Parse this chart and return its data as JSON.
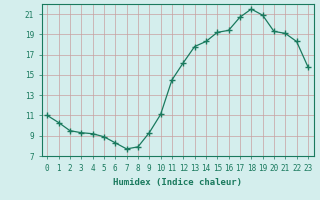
{
  "x": [
    0,
    1,
    2,
    3,
    4,
    5,
    6,
    7,
    8,
    9,
    10,
    11,
    12,
    13,
    14,
    15,
    16,
    17,
    18,
    19,
    20,
    21,
    22,
    23
  ],
  "y": [
    11.0,
    10.3,
    9.5,
    9.3,
    9.2,
    8.9,
    8.3,
    7.7,
    7.9,
    9.3,
    11.1,
    14.5,
    16.2,
    17.8,
    18.3,
    19.2,
    19.4,
    20.7,
    21.5,
    20.9,
    19.3,
    19.1,
    18.3,
    15.8
  ],
  "line_color": "#1a7a5e",
  "marker": "+",
  "marker_size": 4,
  "marker_lw": 1.0,
  "bg_color": "#d4eeed",
  "grid_color": "#c8a0a0",
  "xlabel": "Humidex (Indice chaleur)",
  "ylim": [
    7,
    22
  ],
  "xlim": [
    -0.5,
    23.5
  ],
  "yticks": [
    7,
    9,
    11,
    13,
    15,
    17,
    19,
    21
  ],
  "xtick_labels": [
    "0",
    "1",
    "2",
    "3",
    "4",
    "5",
    "6",
    "7",
    "8",
    "9",
    "10",
    "11",
    "12",
    "13",
    "14",
    "15",
    "16",
    "17",
    "18",
    "19",
    "20",
    "21",
    "22",
    "23"
  ],
  "label_fontsize": 6.5,
  "tick_fontsize": 5.5
}
